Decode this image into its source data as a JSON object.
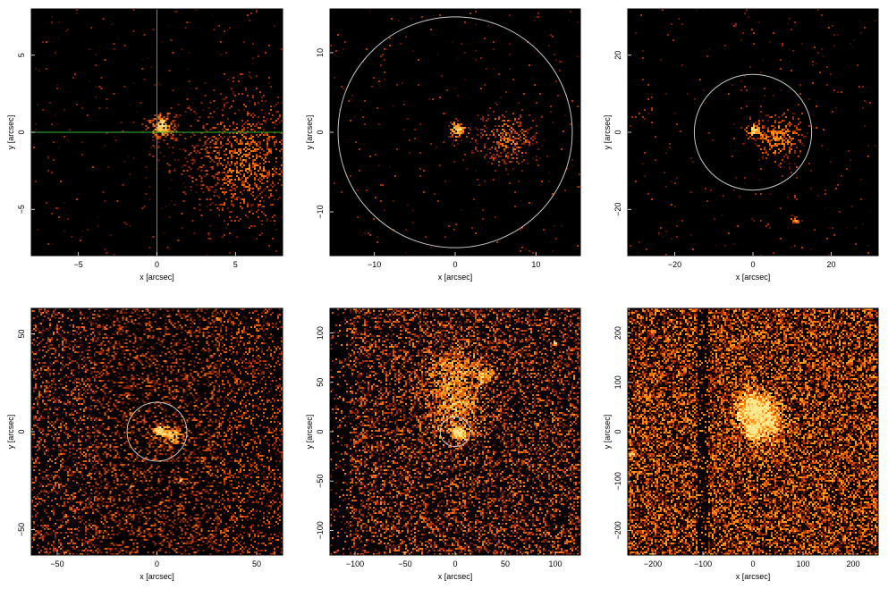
{
  "figure": {
    "background": "#000000",
    "colormap": [
      "#1a0300",
      "#7a1800",
      "#c43a00",
      "#ff7a00",
      "#ffb030",
      "#ffe890"
    ],
    "annotation_circle_color": "#c8c8c8",
    "crosshair_color": "#2eb82e"
  },
  "chart_data": [
    {
      "type": "heatmap",
      "panel": "top-left",
      "xlabel": "x [arcsec]",
      "ylabel": "y [arcsec]",
      "xlim": [
        -8,
        8
      ],
      "ylim": [
        -8,
        8
      ],
      "xticks": [
        -5,
        0,
        5
      ],
      "xtick_labels": [
        "−5",
        "0",
        "5"
      ],
      "yticks": [
        -5,
        0,
        5
      ],
      "ytick_labels": [
        "−5",
        "0",
        "5"
      ],
      "density": "sparse",
      "crosshair": {
        "x": 0,
        "y": 0
      },
      "circle": null,
      "sources": [
        {
          "x": 0.3,
          "y": 0.4,
          "intensity": 1.0,
          "spread": 0.5
        },
        {
          "x": 5.5,
          "y": -1.8,
          "intensity": 0.45,
          "spread": 2.2
        }
      ]
    },
    {
      "type": "heatmap",
      "panel": "top-middle",
      "xlabel": "x [arcsec]",
      "ylabel": "y [arcsec]",
      "xlim": [
        -15.5,
        15.5
      ],
      "ylim": [
        -15.5,
        15.5
      ],
      "xticks": [
        -10,
        0,
        10
      ],
      "xtick_labels": [
        "−10",
        "0",
        "10"
      ],
      "yticks": [
        -10,
        0,
        10
      ],
      "ytick_labels": [
        "−10",
        "0",
        "10"
      ],
      "density": "sparse",
      "crosshair": null,
      "circle": {
        "x": 0,
        "y": 0,
        "r": 14.5
      },
      "sources": [
        {
          "x": 0.3,
          "y": 0.3,
          "intensity": 1.0,
          "spread": 0.7
        },
        {
          "x": 6.5,
          "y": -0.8,
          "intensity": 0.5,
          "spread": 2.0
        }
      ]
    },
    {
      "type": "heatmap",
      "panel": "top-right",
      "xlabel": "x [arcsec]",
      "ylabel": "y [arcsec]",
      "xlim": [
        -32,
        32
      ],
      "ylim": [
        -32,
        32
      ],
      "xticks": [
        -20,
        0,
        20
      ],
      "xtick_labels": [
        "−20",
        "0",
        "20"
      ],
      "yticks": [
        -20,
        0,
        20
      ],
      "ytick_labels": [
        "−20",
        "0",
        "20"
      ],
      "density": "sparse",
      "crosshair": null,
      "circle": {
        "x": 0,
        "y": 0,
        "r": 15
      },
      "sources": [
        {
          "x": 0.3,
          "y": 0.5,
          "intensity": 1.0,
          "spread": 1.2
        },
        {
          "x": 7,
          "y": -1.5,
          "intensity": 0.6,
          "spread": 3.5
        },
        {
          "x": 11,
          "y": -23,
          "intensity": 0.7,
          "spread": 0.8
        }
      ]
    },
    {
      "type": "heatmap",
      "panel": "bottom-left",
      "xlabel": "x [arcsec]",
      "ylabel": "y [arcsec]",
      "xlim": [
        -63,
        63
      ],
      "ylim": [
        -63,
        63
      ],
      "xticks": [
        -50,
        0,
        50
      ],
      "xtick_labels": [
        "−50",
        "0",
        "50"
      ],
      "yticks": [
        -50,
        0,
        50
      ],
      "ytick_labels": [
        "−50",
        "0",
        "50"
      ],
      "density": "medium",
      "crosshair": null,
      "circle": {
        "x": 0,
        "y": 0,
        "r": 15
      },
      "sources": [
        {
          "x": 1,
          "y": 0.5,
          "intensity": 1.0,
          "spread": 2.0
        },
        {
          "x": 7,
          "y": -2,
          "intensity": 0.85,
          "spread": 3.0
        },
        {
          "x": 12,
          "y": -25,
          "intensity": 0.8,
          "spread": 1.0
        },
        {
          "x": -13,
          "y": -28,
          "intensity": 0.6,
          "spread": 1.0
        },
        {
          "x": 30,
          "y": 58,
          "intensity": 0.5,
          "spread": 1.2
        },
        {
          "x": -15,
          "y": 18,
          "intensity": 0.5,
          "spread": 1.0
        }
      ]
    },
    {
      "type": "heatmap",
      "panel": "bottom-middle",
      "xlabel": "x [arcsec]",
      "ylabel": "y [arcsec]",
      "xlim": [
        -125,
        125
      ],
      "ylim": [
        -125,
        125
      ],
      "xticks": [
        -100,
        -50,
        0,
        50,
        100
      ],
      "xtick_labels": [
        "−100",
        "−50",
        "0",
        "50",
        "100"
      ],
      "yticks": [
        -100,
        -50,
        0,
        50,
        100
      ],
      "ytick_labels": [
        "−100",
        "−50",
        "0",
        "50",
        "100"
      ],
      "density": "medium-high",
      "crosshair": null,
      "circle": {
        "x": 0,
        "y": 0,
        "r": 15
      },
      "dark_band": {
        "x0": -125,
        "x1": -105
      },
      "sources": [
        {
          "x": 1,
          "y": 0,
          "intensity": 1.0,
          "spread": 3.0
        },
        {
          "x": 7,
          "y": -3,
          "intensity": 0.8,
          "spread": 4.0
        },
        {
          "x": 30,
          "y": 58,
          "intensity": 0.6,
          "spread": 6.0
        },
        {
          "x": 0,
          "y": 60,
          "intensity": 0.45,
          "spread": 20.0
        },
        {
          "x": 0,
          "y": 20,
          "intensity": 0.45,
          "spread": 18.0
        },
        {
          "x": 100,
          "y": 90,
          "intensity": 0.8,
          "spread": 1.5
        },
        {
          "x": -80,
          "y": -90,
          "intensity": 0.5,
          "spread": 1.5
        }
      ]
    },
    {
      "type": "heatmap",
      "panel": "bottom-right",
      "xlabel": "x [arcsec]",
      "ylabel": "y [arcsec]",
      "xlim": [
        -250,
        250
      ],
      "ylim": [
        -250,
        250
      ],
      "xticks": [
        -200,
        -100,
        0,
        100,
        200
      ],
      "xtick_labels": [
        "−200",
        "−100",
        "0",
        "100",
        "200"
      ],
      "yticks": [
        -200,
        -100,
        0,
        100,
        200
      ],
      "ytick_labels": [
        "−200",
        "−100",
        "0",
        "100",
        "200"
      ],
      "density": "high",
      "crosshair": null,
      "circle": null,
      "dark_band": {
        "x0": -112,
        "x1": -88
      },
      "sources": [
        {
          "x": 0,
          "y": 0,
          "intensity": 1.0,
          "spread": 8.0
        },
        {
          "x": 0,
          "y": 50,
          "intensity": 0.8,
          "spread": 22.0
        },
        {
          "x": 20,
          "y": 20,
          "intensity": 0.65,
          "spread": 30.0
        },
        {
          "x": -240,
          "y": -45,
          "intensity": 0.75,
          "spread": 5.0
        }
      ]
    }
  ]
}
